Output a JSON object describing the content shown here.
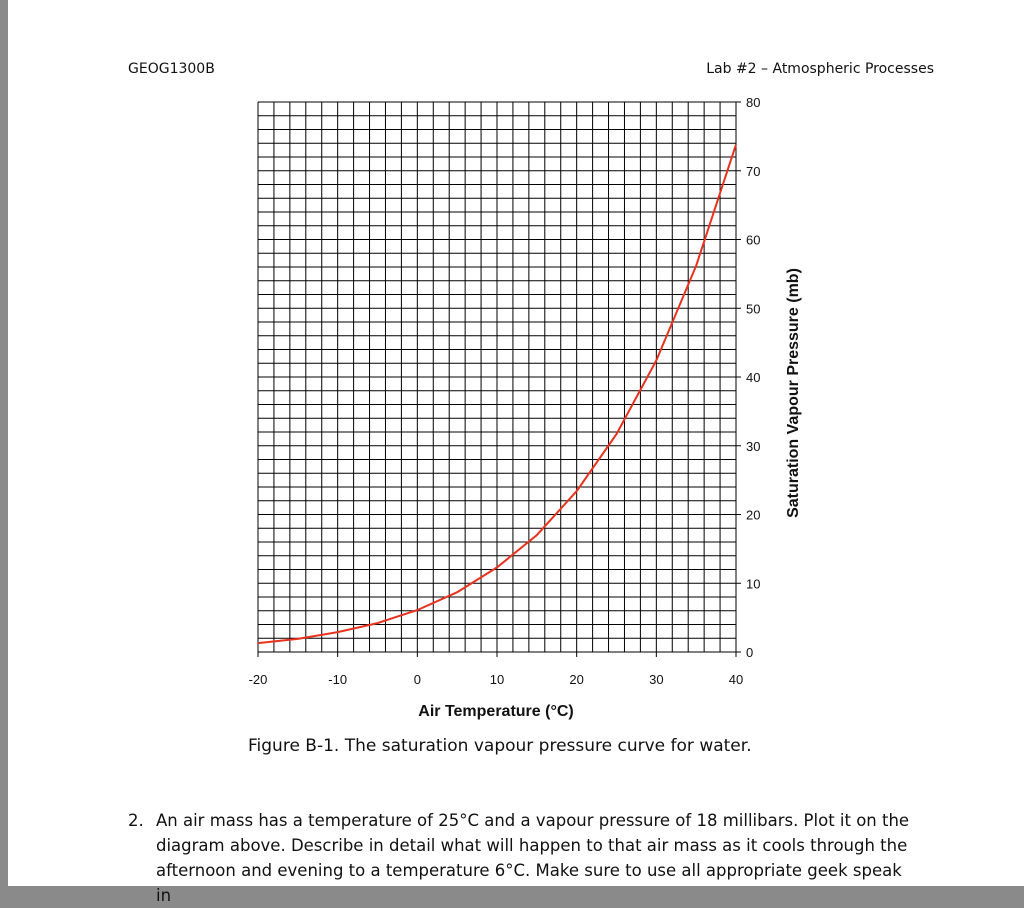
{
  "header": {
    "course": "GEOG1300B",
    "lab": "Lab #2 – Atmospheric Processes"
  },
  "chart_data": {
    "type": "line",
    "xlabel": "Air Temperature (°C)",
    "ylabel": "Saturation Vapour Pressure (mb)",
    "xlim": [
      -20,
      40
    ],
    "ylim": [
      0,
      80
    ],
    "x_ticks": [
      -20,
      -10,
      0,
      10,
      20,
      30,
      40
    ],
    "y_ticks": [
      0,
      10,
      20,
      30,
      40,
      50,
      60,
      70,
      80
    ],
    "grid": true,
    "series": [
      {
        "color": "#e8321e",
        "x": [
          -20,
          -15,
          -10,
          -5,
          0,
          5,
          10,
          15,
          20,
          25,
          30,
          35,
          40
        ],
        "y": [
          1.3,
          1.9,
          2.9,
          4.2,
          6.1,
          8.7,
          12.3,
          17.0,
          23.4,
          31.7,
          42.4,
          56.2,
          73.8
        ]
      }
    ]
  },
  "caption": "Figure B-1. The saturation vapour pressure curve for water.",
  "question": {
    "number": "2.",
    "text": "An air mass has a temperature of 25°C and a vapour pressure of 18 millibars. Plot it on the diagram above. Describe in detail what will happen to that air mass as it cools through the afternoon and evening to a temperature 6°C. Make sure to use all appropriate geek speak in"
  }
}
